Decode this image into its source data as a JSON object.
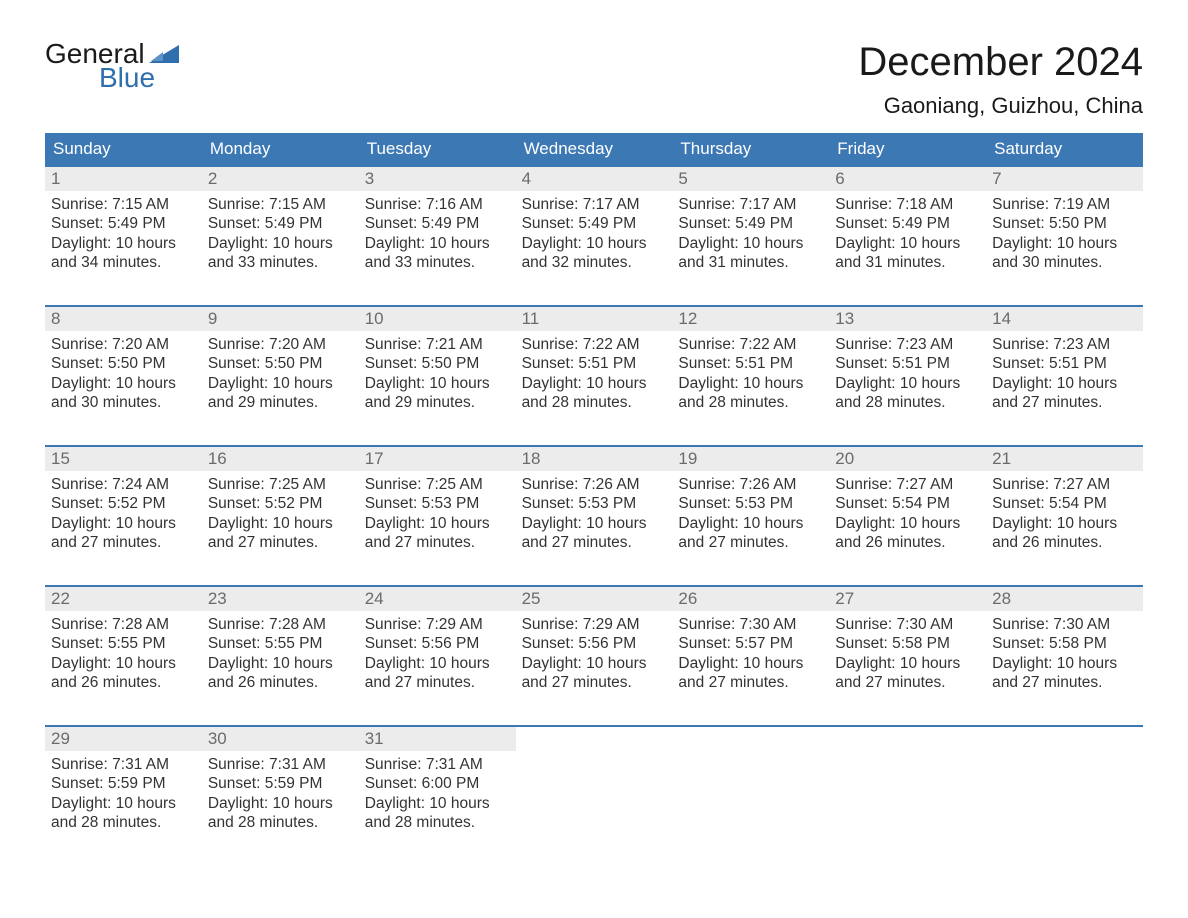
{
  "brand": {
    "word1": "General",
    "word2": "Blue",
    "triangle_color": "#2f6fad"
  },
  "title": "December 2024",
  "location": "Gaoniang, Guizhou, China",
  "colors": {
    "header_bg": "#3c78b4",
    "header_text": "#ffffff",
    "daynum_bg": "#ececec",
    "daynum_text": "#6b6b6b",
    "body_text": "#333333",
    "rule": "#3c78b4",
    "page_bg": "#ffffff"
  },
  "typography": {
    "title_fontsize": 40,
    "location_fontsize": 22,
    "weekday_fontsize": 17,
    "daynum_fontsize": 17,
    "body_fontsize": 15.5,
    "logo_fontsize": 28
  },
  "weekdays": [
    "Sunday",
    "Monday",
    "Tuesday",
    "Wednesday",
    "Thursday",
    "Friday",
    "Saturday"
  ],
  "weeks": [
    [
      {
        "n": "1",
        "sr": "Sunrise: 7:15 AM",
        "ss": "Sunset: 5:49 PM",
        "d1": "Daylight: 10 hours",
        "d2": "and 34 minutes."
      },
      {
        "n": "2",
        "sr": "Sunrise: 7:15 AM",
        "ss": "Sunset: 5:49 PM",
        "d1": "Daylight: 10 hours",
        "d2": "and 33 minutes."
      },
      {
        "n": "3",
        "sr": "Sunrise: 7:16 AM",
        "ss": "Sunset: 5:49 PM",
        "d1": "Daylight: 10 hours",
        "d2": "and 33 minutes."
      },
      {
        "n": "4",
        "sr": "Sunrise: 7:17 AM",
        "ss": "Sunset: 5:49 PM",
        "d1": "Daylight: 10 hours",
        "d2": "and 32 minutes."
      },
      {
        "n": "5",
        "sr": "Sunrise: 7:17 AM",
        "ss": "Sunset: 5:49 PM",
        "d1": "Daylight: 10 hours",
        "d2": "and 31 minutes."
      },
      {
        "n": "6",
        "sr": "Sunrise: 7:18 AM",
        "ss": "Sunset: 5:49 PM",
        "d1": "Daylight: 10 hours",
        "d2": "and 31 minutes."
      },
      {
        "n": "7",
        "sr": "Sunrise: 7:19 AM",
        "ss": "Sunset: 5:50 PM",
        "d1": "Daylight: 10 hours",
        "d2": "and 30 minutes."
      }
    ],
    [
      {
        "n": "8",
        "sr": "Sunrise: 7:20 AM",
        "ss": "Sunset: 5:50 PM",
        "d1": "Daylight: 10 hours",
        "d2": "and 30 minutes."
      },
      {
        "n": "9",
        "sr": "Sunrise: 7:20 AM",
        "ss": "Sunset: 5:50 PM",
        "d1": "Daylight: 10 hours",
        "d2": "and 29 minutes."
      },
      {
        "n": "10",
        "sr": "Sunrise: 7:21 AM",
        "ss": "Sunset: 5:50 PM",
        "d1": "Daylight: 10 hours",
        "d2": "and 29 minutes."
      },
      {
        "n": "11",
        "sr": "Sunrise: 7:22 AM",
        "ss": "Sunset: 5:51 PM",
        "d1": "Daylight: 10 hours",
        "d2": "and 28 minutes."
      },
      {
        "n": "12",
        "sr": "Sunrise: 7:22 AM",
        "ss": "Sunset: 5:51 PM",
        "d1": "Daylight: 10 hours",
        "d2": "and 28 minutes."
      },
      {
        "n": "13",
        "sr": "Sunrise: 7:23 AM",
        "ss": "Sunset: 5:51 PM",
        "d1": "Daylight: 10 hours",
        "d2": "and 28 minutes."
      },
      {
        "n": "14",
        "sr": "Sunrise: 7:23 AM",
        "ss": "Sunset: 5:51 PM",
        "d1": "Daylight: 10 hours",
        "d2": "and 27 minutes."
      }
    ],
    [
      {
        "n": "15",
        "sr": "Sunrise: 7:24 AM",
        "ss": "Sunset: 5:52 PM",
        "d1": "Daylight: 10 hours",
        "d2": "and 27 minutes."
      },
      {
        "n": "16",
        "sr": "Sunrise: 7:25 AM",
        "ss": "Sunset: 5:52 PM",
        "d1": "Daylight: 10 hours",
        "d2": "and 27 minutes."
      },
      {
        "n": "17",
        "sr": "Sunrise: 7:25 AM",
        "ss": "Sunset: 5:53 PM",
        "d1": "Daylight: 10 hours",
        "d2": "and 27 minutes."
      },
      {
        "n": "18",
        "sr": "Sunrise: 7:26 AM",
        "ss": "Sunset: 5:53 PM",
        "d1": "Daylight: 10 hours",
        "d2": "and 27 minutes."
      },
      {
        "n": "19",
        "sr": "Sunrise: 7:26 AM",
        "ss": "Sunset: 5:53 PM",
        "d1": "Daylight: 10 hours",
        "d2": "and 27 minutes."
      },
      {
        "n": "20",
        "sr": "Sunrise: 7:27 AM",
        "ss": "Sunset: 5:54 PM",
        "d1": "Daylight: 10 hours",
        "d2": "and 26 minutes."
      },
      {
        "n": "21",
        "sr": "Sunrise: 7:27 AM",
        "ss": "Sunset: 5:54 PM",
        "d1": "Daylight: 10 hours",
        "d2": "and 26 minutes."
      }
    ],
    [
      {
        "n": "22",
        "sr": "Sunrise: 7:28 AM",
        "ss": "Sunset: 5:55 PM",
        "d1": "Daylight: 10 hours",
        "d2": "and 26 minutes."
      },
      {
        "n": "23",
        "sr": "Sunrise: 7:28 AM",
        "ss": "Sunset: 5:55 PM",
        "d1": "Daylight: 10 hours",
        "d2": "and 26 minutes."
      },
      {
        "n": "24",
        "sr": "Sunrise: 7:29 AM",
        "ss": "Sunset: 5:56 PM",
        "d1": "Daylight: 10 hours",
        "d2": "and 27 minutes."
      },
      {
        "n": "25",
        "sr": "Sunrise: 7:29 AM",
        "ss": "Sunset: 5:56 PM",
        "d1": "Daylight: 10 hours",
        "d2": "and 27 minutes."
      },
      {
        "n": "26",
        "sr": "Sunrise: 7:30 AM",
        "ss": "Sunset: 5:57 PM",
        "d1": "Daylight: 10 hours",
        "d2": "and 27 minutes."
      },
      {
        "n": "27",
        "sr": "Sunrise: 7:30 AM",
        "ss": "Sunset: 5:58 PM",
        "d1": "Daylight: 10 hours",
        "d2": "and 27 minutes."
      },
      {
        "n": "28",
        "sr": "Sunrise: 7:30 AM",
        "ss": "Sunset: 5:58 PM",
        "d1": "Daylight: 10 hours",
        "d2": "and 27 minutes."
      }
    ],
    [
      {
        "n": "29",
        "sr": "Sunrise: 7:31 AM",
        "ss": "Sunset: 5:59 PM",
        "d1": "Daylight: 10 hours",
        "d2": "and 28 minutes."
      },
      {
        "n": "30",
        "sr": "Sunrise: 7:31 AM",
        "ss": "Sunset: 5:59 PM",
        "d1": "Daylight: 10 hours",
        "d2": "and 28 minutes."
      },
      {
        "n": "31",
        "sr": "Sunrise: 7:31 AM",
        "ss": "Sunset: 6:00 PM",
        "d1": "Daylight: 10 hours",
        "d2": "and 28 minutes."
      },
      null,
      null,
      null,
      null
    ]
  ]
}
